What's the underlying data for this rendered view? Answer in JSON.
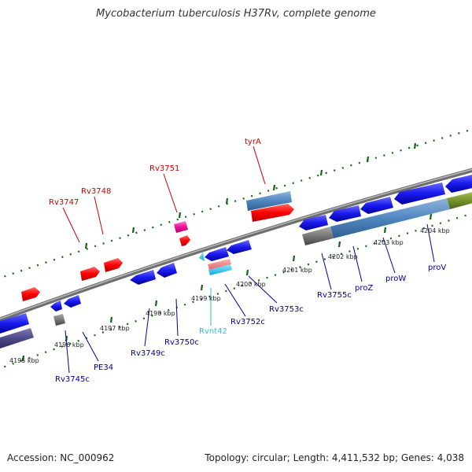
{
  "title": "Mycobacterium tuberculosis H37Rv, complete genome",
  "footer": {
    "accession": "Accession: NC_000962",
    "topology": "Topology: circular; Length: 4,411,532 bp; Genes: 4,038"
  },
  "colors": {
    "forward_label": "#cc0000",
    "reverse_label": "#000099",
    "rna_label": "#33bbdd",
    "forward_feature": "#ff0000",
    "reverse_feature": "#1a1aee",
    "backbone": "#888888",
    "tick": "#116611"
  },
  "kbp_labels": [
    "4195 kbp",
    "4196 kbp",
    "4197 kbp",
    "4198 kbp",
    "4199 kbp",
    "4200 kbp",
    "4201 kbp",
    "4202 kbp",
    "4203 kbp",
    "4204 kbp"
  ],
  "gene_labels": {
    "forward": [
      "tyrA",
      "Rv3751",
      "Rv3748",
      "Rv3747"
    ],
    "reverse": [
      "Rv3745c",
      "PE34",
      "Rv3749c",
      "Rv3750c",
      "Rv3752c",
      "Rv3753c",
      "Rv3755c",
      "proZ",
      "proW",
      "proV"
    ],
    "rna": [
      "Rvnt42"
    ]
  }
}
